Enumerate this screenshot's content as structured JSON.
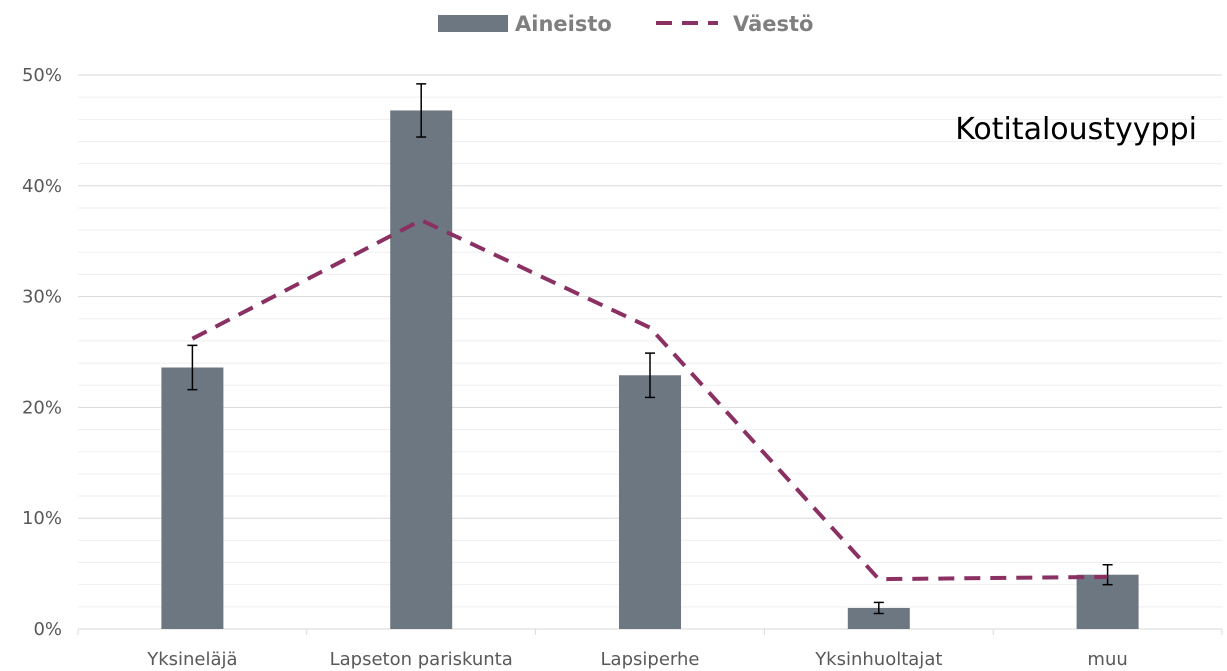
{
  "chart_data": {
    "type": "bar",
    "title": "Kotitaloustyyppi",
    "xlabel": "",
    "ylabel": "",
    "categories": [
      "Yksineläjä",
      "Lapseton pariskunta",
      "Lapsiperhe",
      "Yksinhuoltajat",
      "muu"
    ],
    "ylim": [
      0,
      50
    ],
    "yticks": [
      0,
      10,
      20,
      30,
      40,
      50
    ],
    "ytick_labels": [
      "0%",
      "10%",
      "20%",
      "30%",
      "40%",
      "50%"
    ],
    "grid": true,
    "legend_position": "top-center",
    "series": [
      {
        "name": "Aineisto",
        "type": "bar",
        "color": "#6d7781",
        "values": [
          23.6,
          46.8,
          22.9,
          1.9,
          4.9
        ],
        "error_low": [
          21.6,
          44.4,
          20.9,
          1.4,
          4.0
        ],
        "error_high": [
          25.6,
          49.2,
          24.9,
          2.4,
          5.8
        ]
      },
      {
        "name": "Väestö",
        "type": "line",
        "style": "dashed",
        "color": "#8b3062",
        "values": [
          26.2,
          36.9,
          27.2,
          4.5,
          4.7
        ]
      }
    ]
  }
}
